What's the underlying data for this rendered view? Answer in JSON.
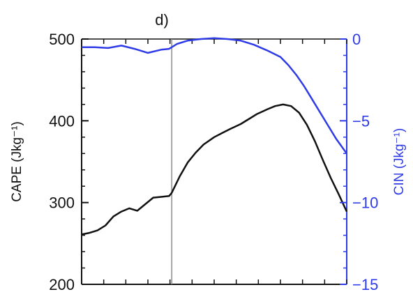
{
  "chart_data": {
    "type": "line",
    "panel_label": "d)",
    "x_range": [
      0,
      100
    ],
    "left_axis": {
      "label": "CAPE (Jkg⁻¹)",
      "range": [
        200,
        500
      ],
      "ticks": [
        200,
        300,
        400,
        500
      ],
      "color": "#111111"
    },
    "right_axis": {
      "label": "CIN (Jkg⁻¹)",
      "range": [
        -15,
        0
      ],
      "ticks": [
        -15,
        -10,
        -5,
        0
      ],
      "tick_labels": [
        "−15",
        "−10",
        "−5",
        "0"
      ],
      "color": "#2e3be6"
    },
    "vertical_marker_x": 34,
    "series": [
      {
        "axis": "left",
        "color": "#111111",
        "x": [
          0,
          3,
          6,
          9,
          12,
          15,
          18,
          21,
          24,
          27,
          30,
          33,
          34,
          37,
          40,
          43,
          46,
          50,
          53,
          56,
          60,
          63,
          66,
          70,
          73,
          76,
          79,
          82,
          85,
          88,
          91,
          94,
          97,
          100
        ],
        "y": [
          261,
          263,
          266,
          272,
          283,
          289,
          293,
          290,
          298,
          306,
          307,
          308,
          312,
          332,
          349,
          361,
          371,
          380,
          385,
          390,
          396,
          402,
          408,
          414,
          418,
          420,
          418,
          410,
          395,
          375,
          352,
          330,
          310,
          289
        ]
      },
      {
        "axis": "right",
        "color": "#2e3be6",
        "x": [
          0,
          5,
          10,
          15,
          20,
          25,
          30,
          33,
          36,
          40,
          45,
          50,
          55,
          60,
          65,
          70,
          75,
          78,
          81,
          84,
          87,
          90,
          93,
          96,
          100
        ],
        "y": [
          -0.5,
          -0.5,
          -0.55,
          -0.4,
          -0.6,
          -0.85,
          -0.65,
          -0.6,
          -0.3,
          -0.1,
          0.0,
          0.05,
          0.0,
          -0.1,
          -0.35,
          -0.7,
          -1.1,
          -1.6,
          -2.2,
          -2.9,
          -3.7,
          -4.5,
          -5.3,
          -6.1,
          -7.0
        ]
      }
    ]
  }
}
